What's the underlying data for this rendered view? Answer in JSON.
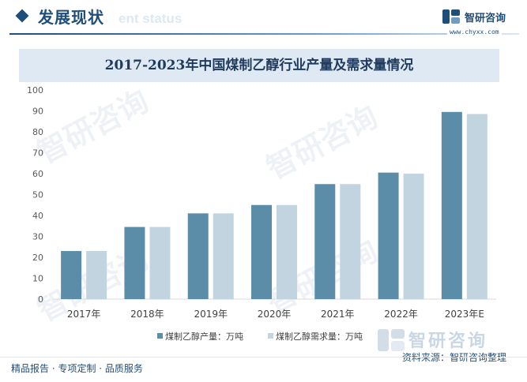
{
  "header": {
    "section_title": "发展现状",
    "section_subtitle": "ent status",
    "brand_name": "智研咨询",
    "brand_url": "www.chyxx.com"
  },
  "chart_data": {
    "type": "bar",
    "title": "2017-2023年中国煤制乙醇行业产量及需求量情况",
    "categories": [
      "2017年",
      "2018年",
      "2019年",
      "2020年",
      "2021年",
      "2022年",
      "2023年E"
    ],
    "series": [
      {
        "name": "煤制乙醇产量：万吨",
        "color": "#5b8ca8",
        "values": [
          23,
          34.5,
          41,
          45,
          55,
          60.5,
          89.5
        ]
      },
      {
        "name": "煤制乙醇需求量：万吨",
        "color": "#c1d4df",
        "values": [
          23,
          34.5,
          41,
          45,
          55,
          60,
          88.5
        ]
      }
    ],
    "ylim": [
      0,
      100
    ],
    "yticks": [
      0,
      10,
      20,
      30,
      40,
      50,
      60,
      70,
      80,
      90,
      100
    ],
    "grid": false,
    "legend_position": "bottom"
  },
  "footer": {
    "left_text": "精品报告 · 专项定制 · 品质服务",
    "source_text": "资料来源：智研咨询整理",
    "watermark_brand": "智研咨询"
  }
}
